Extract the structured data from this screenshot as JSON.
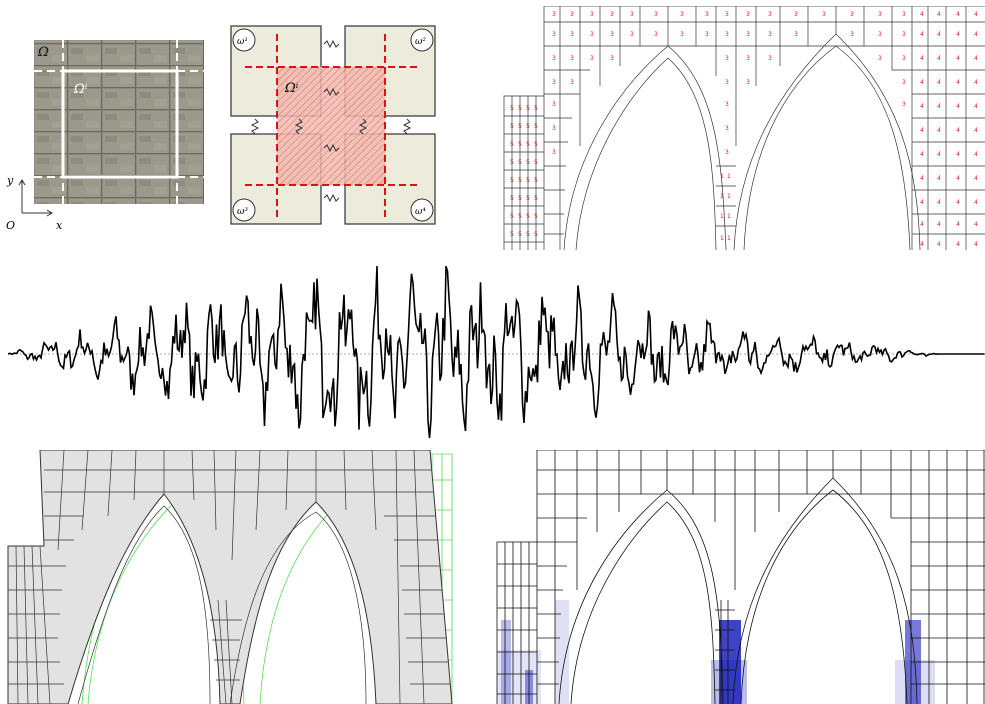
{
  "panel_a": {
    "omega_label": "Ω",
    "omega_i_label": "Ωⁱ",
    "axis_y": "y",
    "axis_x": "x",
    "origin": "O"
  },
  "panel_b": {
    "omega_i_label": "Ωⁱ",
    "corner_labels": [
      "ω¹",
      "ω²",
      "ω³",
      "ω⁴"
    ]
  },
  "colors": {
    "red_dashed": "#dd1111",
    "hatch_fill": "#f1b9b0",
    "block_fill": "#ecebdc",
    "mesh_stroke": "#333333",
    "deformed_fill": "#e2e2e2",
    "green_mesh": "#55dd55",
    "damage_blue": "#1a22bb",
    "signal": "#000000"
  }
}
